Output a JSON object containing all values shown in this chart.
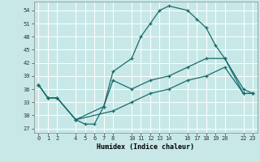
{
  "bg_color": "#c8e8e8",
  "grid_color": "#ffffff",
  "line_color": "#1a6b6b",
  "xlabel": "Humidex (Indice chaleur)",
  "xlim": [
    -0.5,
    23.5
  ],
  "ylim": [
    26,
    56
  ],
  "xticks": [
    0,
    1,
    2,
    4,
    5,
    6,
    7,
    8,
    10,
    11,
    12,
    13,
    14,
    16,
    17,
    18,
    19,
    20,
    22,
    23
  ],
  "yticks": [
    27,
    30,
    33,
    36,
    39,
    42,
    45,
    48,
    51,
    54
  ],
  "curve1_x": [
    0,
    1,
    2,
    4,
    5,
    6,
    7,
    8,
    10,
    11,
    12,
    13,
    14,
    16,
    17,
    18,
    19,
    20,
    22,
    23
  ],
  "curve1_y": [
    37,
    34,
    34,
    29,
    28,
    28,
    32,
    40,
    43,
    48,
    51,
    54,
    55,
    54,
    52,
    50,
    46,
    43,
    36,
    35
  ],
  "curve2_x": [
    0,
    1,
    2,
    4,
    7,
    8,
    10,
    12,
    14,
    16,
    18,
    20,
    22,
    23
  ],
  "curve2_y": [
    37,
    34,
    34,
    29,
    32,
    38,
    36,
    38,
    39,
    41,
    43,
    43,
    35,
    35
  ],
  "curve3_x": [
    0,
    1,
    2,
    4,
    8,
    10,
    12,
    14,
    16,
    18,
    20,
    22,
    23
  ],
  "curve3_y": [
    37,
    34,
    34,
    29,
    31,
    33,
    35,
    36,
    38,
    39,
    41,
    35,
    35
  ]
}
